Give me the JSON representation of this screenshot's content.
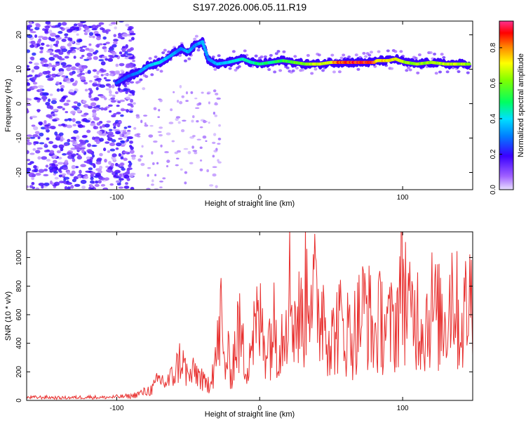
{
  "title": "S197.2026.006.05.11.R19",
  "chart_data": [
    {
      "type": "heatmap",
      "xlabel": "Height of straight line (km)",
      "ylabel": "Frequency (Hz)",
      "xlim": [
        -163,
        149
      ],
      "ylim": [
        -25,
        24
      ],
      "xticks": [
        -100,
        0,
        100
      ],
      "yticks": [
        -20,
        -10,
        0,
        10,
        20
      ],
      "ridge": {
        "x": [
          -100,
          -92,
          -85,
          -78,
          -70,
          -62,
          -55,
          -50,
          -45,
          -40,
          -36,
          -30,
          -22,
          -12,
          -6,
          0,
          8,
          16,
          24,
          32,
          42,
          50,
          55,
          65,
          80,
          82,
          90,
          95,
          98,
          102,
          110,
          120,
          130,
          140,
          147
        ],
        "y": [
          6,
          8,
          9,
          11,
          12,
          14,
          16,
          15,
          17,
          18,
          13,
          11.5,
          12,
          13,
          12,
          11.5,
          12,
          12.5,
          12,
          11.5,
          11.5,
          12,
          12,
          12,
          12,
          12.5,
          12.5,
          13,
          12.5,
          12,
          11.5,
          12,
          11.5,
          11.5,
          11.5
        ],
        "amplitude": [
          0.3,
          0.3,
          0.35,
          0.4,
          0.45,
          0.4,
          0.35,
          0.4,
          0.35,
          0.4,
          0.35,
          0.4,
          0.45,
          0.5,
          0.5,
          0.55,
          0.55,
          0.6,
          0.65,
          0.7,
          0.75,
          0.8,
          0.95,
          1.0,
          1.0,
          0.8,
          0.85,
          0.8,
          0.8,
          0.7,
          0.7,
          0.7,
          0.75,
          0.75,
          0.7
        ]
      },
      "colorbar": {
        "label": "Normalized spectral amplitude",
        "range": [
          0.0,
          0.95
        ],
        "ticks": [
          0.0,
          0.2,
          0.4,
          0.6,
          0.8
        ]
      }
    },
    {
      "type": "line",
      "xlabel": "Height of straight line (km)",
      "ylabel": "SNR (10 * v/v)",
      "xlim": [
        -163,
        149
      ],
      "ylim": [
        0,
        1180
      ],
      "xticks": [
        -100,
        0,
        100
      ],
      "yticks": [
        0,
        200,
        400,
        600,
        800,
        1000
      ],
      "color": "#e8302f",
      "series": [
        {
          "name": "SNR",
          "x": [
            -163,
            -150,
            -140,
            -130,
            -120,
            -110,
            -100,
            -90,
            -85,
            -80,
            -75,
            -70,
            -65,
            -60,
            -55,
            -50,
            -45,
            -40,
            -37,
            -35,
            -30,
            -27,
            -25,
            -22,
            -20,
            -15,
            -12,
            -10,
            -5,
            0,
            5,
            10,
            15,
            20,
            25,
            30,
            35,
            40,
            45,
            50,
            55,
            60,
            65,
            70,
            75,
            80,
            85,
            90,
            95,
            100,
            105,
            110,
            115,
            120,
            125,
            130,
            135,
            140,
            145,
            149
          ],
          "y": [
            20,
            22,
            18,
            20,
            24,
            20,
            25,
            30,
            45,
            60,
            80,
            150,
            120,
            180,
            300,
            160,
            200,
            150,
            120,
            200,
            380,
            700,
            300,
            350,
            250,
            600,
            450,
            300,
            550,
            650,
            500,
            620,
            520,
            1000,
            680,
            700,
            1150,
            750,
            800,
            500,
            650,
            600,
            550,
            700,
            800,
            520,
            700,
            600,
            650,
            1080,
            700,
            750,
            620,
            800,
            700,
            680,
            1000,
            600,
            800,
            900
          ]
        }
      ]
    }
  ]
}
